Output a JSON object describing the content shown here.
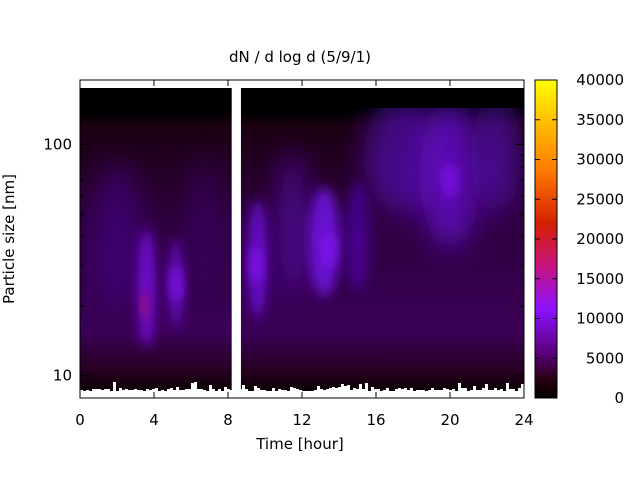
{
  "chart_data": {
    "type": "heatmap",
    "title": "dN / d log d (5/9/1)",
    "xlabel": "Time [hour]",
    "ylabel": "Particle size [nm]",
    "xlim": [
      0,
      24
    ],
    "x_ticks": [
      0,
      4,
      8,
      12,
      16,
      20,
      24
    ],
    "y_scale": "log",
    "ylim": [
      8,
      190
    ],
    "y_ticks": [
      10,
      100
    ],
    "colorbar": {
      "min": 0,
      "max": 40000,
      "ticks": [
        0,
        5000,
        10000,
        15000,
        20000,
        25000,
        30000,
        35000,
        40000
      ],
      "colormap": "black-purple-red-orange-yellow"
    },
    "data_gap_hours": [
      8.2,
      8.7
    ],
    "grid": false,
    "description_values": {
      "peak_events": [
        {
          "time_hour": 3.5,
          "size_nm": 20,
          "value": 18000
        },
        {
          "time_hour": 5.2,
          "size_nm": 25,
          "value": 9000
        },
        {
          "time_hour": 9.5,
          "size_nm": 30,
          "value": 8000
        },
        {
          "time_hour": 13.5,
          "size_nm": 35,
          "value": 9500
        },
        {
          "time_hour": 20,
          "size_nm": 70,
          "value": 9000
        }
      ]
    }
  },
  "colors": {
    "c0": "#000000",
    "c1": "#3a0033",
    "c2": "#5d0080",
    "c3": "#8a0eff",
    "c4": "#cc1f6e",
    "c5": "#dd3300",
    "c6": "#ff8c00",
    "c7": "#ffee00"
  }
}
